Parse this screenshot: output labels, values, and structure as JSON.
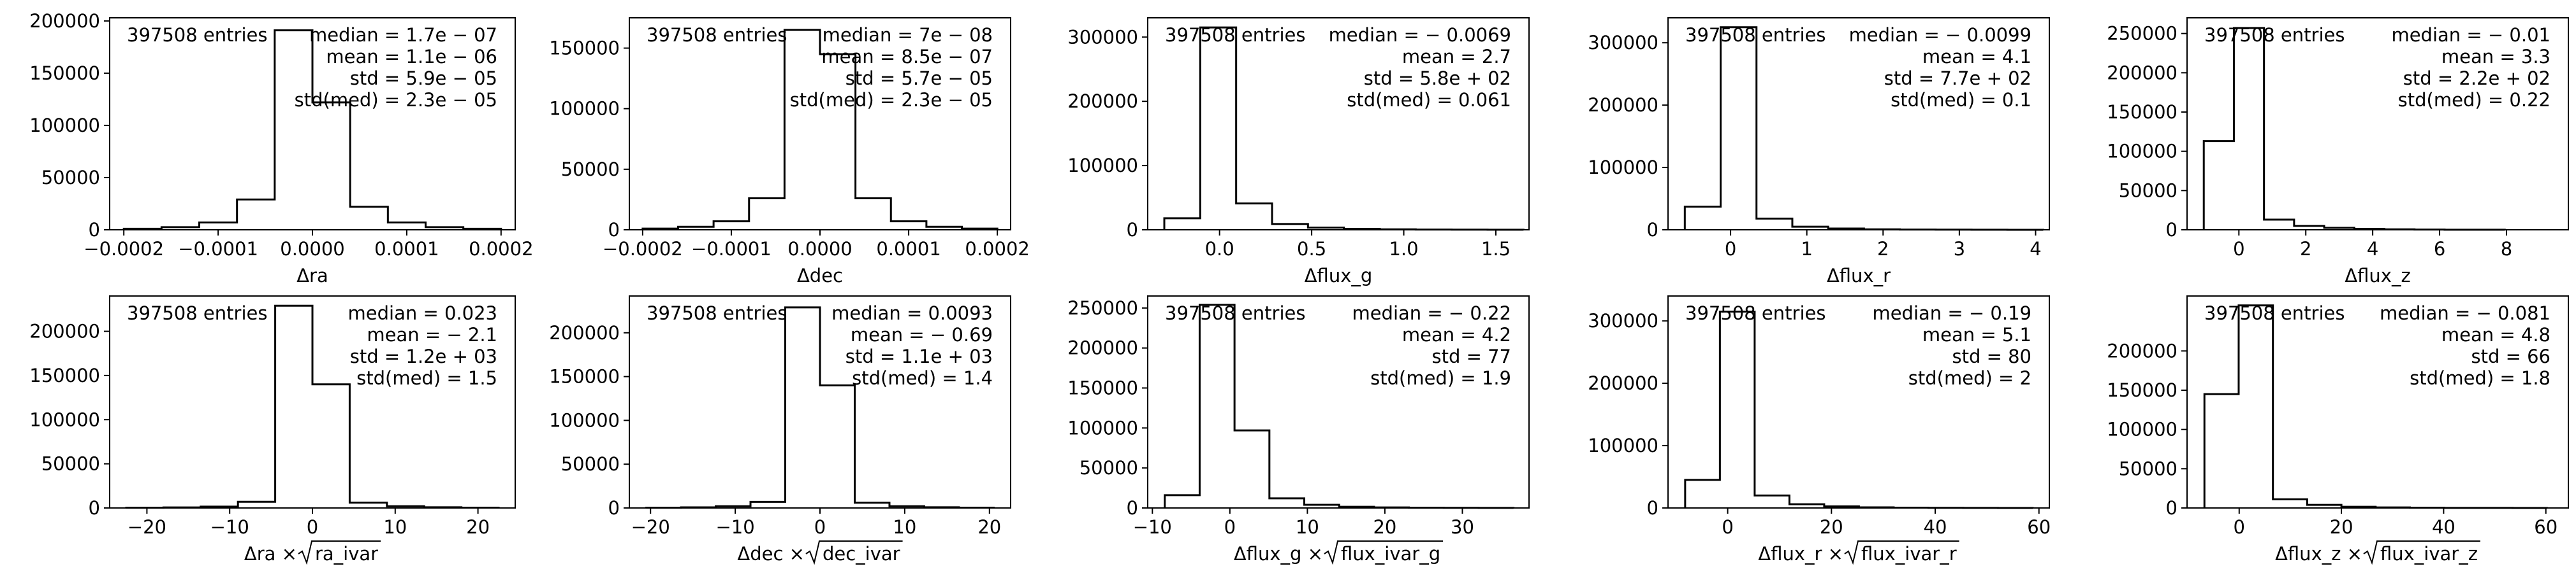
{
  "chart_data": [
    {
      "type": "histogram",
      "xlabel_text": "Δra",
      "xlabel_sqrt": "",
      "xlim": [
        -0.000215,
        0.000215
      ],
      "ylim": [
        0,
        203000
      ],
      "xticks": [
        -0.0002,
        -0.0001,
        0.0,
        0.0001,
        0.0002
      ],
      "xtick_labels": [
        "−0.0002",
        "−0.0001",
        "0.0000",
        "0.0001",
        "0.0002"
      ],
      "yticks": [
        0,
        50000,
        100000,
        150000,
        200000
      ],
      "ytick_labels": [
        "0",
        "50000",
        "100000",
        "150000",
        "200000"
      ],
      "bin_edges": [
        -0.0002,
        -0.00016,
        -0.00012,
        -8e-05,
        -4e-05,
        0.0,
        4e-05,
        8e-05,
        0.00012,
        0.00016,
        0.0002
      ],
      "counts": [
        1000,
        2500,
        7000,
        29000,
        191000,
        122000,
        22000,
        7000,
        2500,
        1000
      ],
      "entries_label": "397508 entries",
      "stats": [
        "median = 1.7e − 07",
        "mean = 1.1e − 06",
        "std = 5.9e − 05",
        "std(med) = 2.3e − 05"
      ]
    },
    {
      "type": "histogram",
      "xlabel_text": "Δdec",
      "xlabel_sqrt": "",
      "xlim": [
        -0.000215,
        0.000215
      ],
      "ylim": [
        0,
        175000
      ],
      "xticks": [
        -0.0002,
        -0.0001,
        0.0,
        0.0001,
        0.0002
      ],
      "xtick_labels": [
        "−0.0002",
        "−0.0001",
        "0.0000",
        "0.0001",
        "0.0002"
      ],
      "yticks": [
        0,
        50000,
        100000,
        150000
      ],
      "ytick_labels": [
        "0",
        "50000",
        "100000",
        "150000"
      ],
      "bin_edges": [
        -0.0002,
        -0.00016,
        -0.00012,
        -8e-05,
        -4e-05,
        0.0,
        4e-05,
        8e-05,
        0.00012,
        0.00016,
        0.0002
      ],
      "counts": [
        1000,
        2500,
        7000,
        26000,
        165000,
        145000,
        26000,
        7000,
        2500,
        1000
      ],
      "entries_label": "397508 entries",
      "stats": [
        "median = 7e − 08",
        "mean = 8.5e − 07",
        "std = 5.7e − 05",
        "std(med) = 2.3e − 05"
      ]
    },
    {
      "type": "histogram",
      "xlabel_text": "Δflux_g",
      "xlabel_sqrt": "",
      "xlim": [
        -0.39,
        1.68
      ],
      "ylim": [
        0,
        330000
      ],
      "xticks": [
        0.0,
        0.5,
        1.0,
        1.5
      ],
      "xtick_labels": [
        "0.0",
        "0.5",
        "1.0",
        "1.5"
      ],
      "yticks": [
        0,
        100000,
        200000,
        300000
      ],
      "ytick_labels": [
        "0",
        "100000",
        "200000",
        "300000"
      ],
      "bin_edges": [
        -0.3,
        -0.105,
        0.09,
        0.285,
        0.48,
        0.675,
        0.87,
        1.065,
        1.26,
        1.455,
        1.65
      ],
      "counts": [
        18000,
        315000,
        41000,
        9000,
        3500,
        1500,
        800,
        400,
        200,
        100
      ],
      "entries_label": "397508 entries",
      "stats": [
        "median = − 0.0069",
        "mean = 2.7",
        "std = 5.8e + 02",
        "std(med) = 0.061"
      ]
    },
    {
      "type": "histogram",
      "xlabel_text": "Δflux_r",
      "xlabel_sqrt": "",
      "xlim": [
        -0.82,
        4.18
      ],
      "ylim": [
        0,
        340000
      ],
      "xticks": [
        0,
        1,
        2,
        3,
        4
      ],
      "xtick_labels": [
        "0",
        "1",
        "2",
        "3",
        "4"
      ],
      "yticks": [
        0,
        100000,
        200000,
        300000
      ],
      "ytick_labels": [
        "0",
        "100000",
        "200000",
        "300000"
      ],
      "bin_edges": [
        -0.6,
        -0.13,
        0.34,
        0.81,
        1.28,
        1.75,
        2.22,
        2.69,
        3.16,
        3.63,
        4.1
      ],
      "counts": [
        37000,
        325000,
        18000,
        5000,
        2000,
        800,
        400,
        200,
        100,
        50
      ],
      "entries_label": "397508 entries",
      "stats": [
        "median = − 0.0099",
        "mean = 4.1",
        "std = 7.7e + 02",
        "std(med) = 0.1"
      ]
    },
    {
      "type": "histogram",
      "xlabel_text": "Δflux_z",
      "xlabel_sqrt": "",
      "xlim": [
        -1.55,
        9.85
      ],
      "ylim": [
        0,
        270000
      ],
      "xticks": [
        0,
        2,
        4,
        6,
        8
      ],
      "xtick_labels": [
        "0",
        "2",
        "4",
        "6",
        "8"
      ],
      "yticks": [
        0,
        50000,
        100000,
        150000,
        200000,
        250000
      ],
      "ytick_labels": [
        "0",
        "50000",
        "100000",
        "150000",
        "200000",
        "250000"
      ],
      "bin_edges": [
        -1.05,
        -0.15,
        0.75,
        1.65,
        2.55,
        3.45,
        4.35,
        5.25,
        6.15,
        7.05,
        7.95
      ],
      "counts": [
        113000,
        257000,
        13000,
        5000,
        2500,
        1200,
        600,
        300,
        150,
        80
      ],
      "entries_label": "397508 entries",
      "stats": [
        "median = − 0.01",
        "mean = 3.3",
        "std = 2.2e + 02",
        "std(med) = 0.22"
      ]
    },
    {
      "type": "histogram",
      "xlabel_text": "Δra × ",
      "xlabel_sqrt": "ra_ivar",
      "xlim": [
        -24.5,
        24.5
      ],
      "ylim": [
        0,
        240000
      ],
      "xticks": [
        -20,
        -10,
        0,
        10,
        20
      ],
      "xtick_labels": [
        "−20",
        "−10",
        "0",
        "10",
        "20"
      ],
      "yticks": [
        0,
        50000,
        100000,
        150000,
        200000
      ],
      "ytick_labels": [
        "0",
        "50000",
        "100000",
        "150000",
        "200000"
      ],
      "bin_edges": [
        -22.5,
        -18,
        -13.5,
        -9,
        -4.5,
        0,
        4.5,
        9,
        13.5,
        18,
        22.5
      ],
      "counts": [
        300,
        600,
        1500,
        7000,
        229000,
        140000,
        6000,
        2000,
        800,
        400
      ],
      "entries_label": "397508 entries",
      "stats": [
        "median = 0.023",
        "mean = − 2.1",
        "std = 1.2e + 03",
        "std(med) = 1.5"
      ]
    },
    {
      "type": "histogram",
      "xlabel_text": "Δdec × ",
      "xlabel_sqrt": "dec_ivar",
      "xlim": [
        -22.5,
        22.5
      ],
      "ylim": [
        0,
        242000
      ],
      "xticks": [
        -20,
        -10,
        0,
        10,
        20
      ],
      "xtick_labels": [
        "−20",
        "−10",
        "0",
        "10",
        "20"
      ],
      "yticks": [
        0,
        50000,
        100000,
        150000,
        200000
      ],
      "ytick_labels": [
        "0",
        "50000",
        "100000",
        "150000",
        "200000"
      ],
      "bin_edges": [
        -20.5,
        -16.4,
        -12.3,
        -8.2,
        -4.1,
        0,
        4.1,
        8.2,
        12.3,
        16.4,
        20.5
      ],
      "counts": [
        300,
        700,
        2000,
        7000,
        229000,
        140000,
        6000,
        2000,
        800,
        400
      ],
      "entries_label": "397508 entries",
      "stats": [
        "median = 0.0093",
        "mean = − 0.69",
        "std = 1.1e + 03",
        "std(med) = 1.4"
      ]
    },
    {
      "type": "histogram",
      "xlabel_text": "Δflux_g × ",
      "xlabel_sqrt": "flux_ivar_g",
      "xlim": [
        -10.6,
        38.6
      ],
      "ylim": [
        0,
        265000
      ],
      "xticks": [
        -10,
        0,
        10,
        20,
        30
      ],
      "xtick_labels": [
        "−10",
        "0",
        "10",
        "20",
        "30"
      ],
      "yticks": [
        0,
        50000,
        100000,
        150000,
        200000,
        250000
      ],
      "ytick_labels": [
        "0",
        "50000",
        "100000",
        "150000",
        "200000",
        "250000"
      ],
      "bin_edges": [
        -8.4,
        -3.9,
        0.6,
        5.1,
        9.6,
        14.1,
        18.6,
        23.1,
        27.6,
        32.1,
        36.6
      ],
      "counts": [
        16000,
        254000,
        97000,
        12000,
        4000,
        1500,
        700,
        300,
        150,
        80
      ],
      "entries_label": "397508 entries",
      "stats": [
        "median = − 0.22",
        "mean = 4.2",
        "std = 77",
        "std(med) = 1.9"
      ]
    },
    {
      "type": "histogram",
      "xlabel_text": "Δflux_r × ",
      "xlabel_sqrt": "flux_ivar_r",
      "xlim": [
        -11.5,
        62.0
      ],
      "ylim": [
        0,
        340000
      ],
      "xticks": [
        0,
        20,
        40,
        60
      ],
      "xtick_labels": [
        "0",
        "20",
        "40",
        "60"
      ],
      "yticks": [
        0,
        100000,
        200000,
        300000
      ],
      "ytick_labels": [
        "0",
        "100000",
        "200000",
        "300000"
      ],
      "bin_edges": [
        -8.2,
        -1.5,
        5.2,
        11.9,
        18.6,
        25.3,
        32.0,
        38.7,
        45.4,
        52.1,
        58.8
      ],
      "counts": [
        45000,
        315000,
        20000,
        6000,
        2500,
        1000,
        500,
        200,
        100,
        50
      ],
      "entries_label": "397508 entries",
      "stats": [
        "median = − 0.19",
        "mean = 5.1",
        "std = 80",
        "std(med) = 2"
      ]
    },
    {
      "type": "histogram",
      "xlabel_text": "Δflux_z × ",
      "xlabel_sqrt": "flux_ivar_z",
      "xlim": [
        -10.2,
        64.4
      ],
      "ylim": [
        0,
        270000
      ],
      "xticks": [
        0,
        20,
        40,
        60
      ],
      "xtick_labels": [
        "0",
        "20",
        "40",
        "60"
      ],
      "yticks": [
        0,
        50000,
        100000,
        150000,
        200000
      ],
      "ytick_labels": [
        "0",
        "50000",
        "100000",
        "150000",
        "200000"
      ],
      "bin_edges": [
        -6.8,
        -0.1,
        6.6,
        13.3,
        20.0,
        26.7,
        33.4,
        40.1,
        46.8,
        53.5,
        60.2
      ],
      "counts": [
        145000,
        258000,
        11000,
        4000,
        1500,
        700,
        300,
        150,
        80,
        40
      ],
      "entries_label": "397508 entries",
      "stats": [
        "median = − 0.081",
        "mean = 4.8",
        "std = 66",
        "std(med) = 1.8"
      ]
    }
  ]
}
